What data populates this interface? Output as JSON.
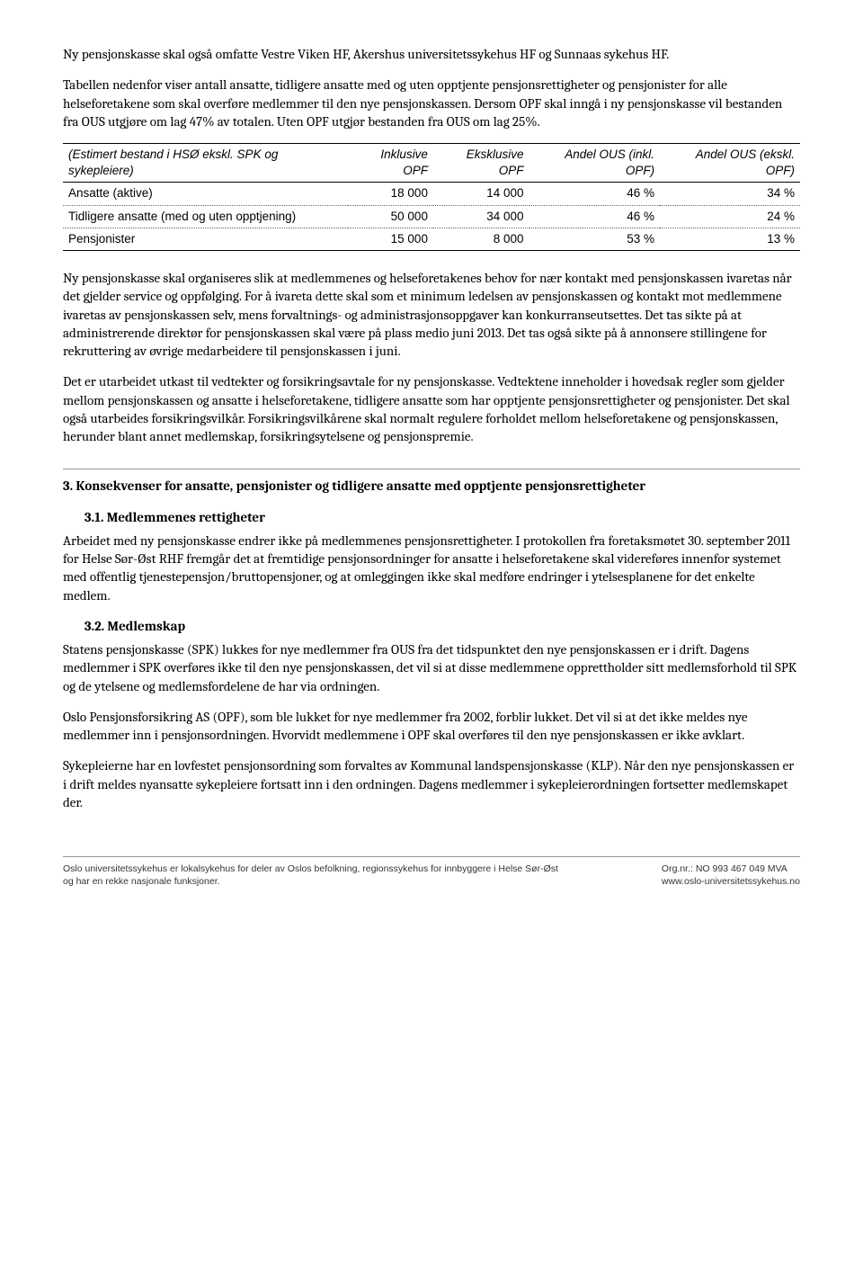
{
  "paragraphs_top": [
    "Ny pensjonskasse skal også omfatte Vestre Viken HF, Akershus universitetssykehus HF og Sunnaas sykehus HF.",
    "Tabellen nedenfor viser antall ansatte, tidligere ansatte med og uten opptjente pensjonsrettigheter og pensjonister for alle helseforetakene som skal overføre medlemmer til den nye pensjonskassen. Dersom OPF skal inngå i ny pensjonskasse vil bestanden fra OUS utgjøre om lag 47% av totalen. Uten OPF utgjør bestanden fra OUS om lag 25%."
  ],
  "table": {
    "headers": [
      "(Estimert bestand i HSØ ekskl. SPK og sykepleiere)",
      "Inklusive OPF",
      "Eksklusive OPF",
      "Andel OUS (inkl. OPF)",
      "Andel OUS (ekskl. OPF)"
    ],
    "rows": [
      [
        "Ansatte (aktive)",
        "18 000",
        "14 000",
        "46 %",
        "34 %"
      ],
      [
        "Tidligere ansatte (med og uten opptjening)",
        "50 000",
        "34 000",
        "46 %",
        "24 %"
      ],
      [
        "Pensjonister",
        "15 000",
        "8 000",
        "53 %",
        "13 %"
      ]
    ]
  },
  "paragraphs_mid": [
    "Ny pensjonskasse skal organiseres slik at medlemmenes og helseforetakenes behov for nær kontakt med pensjonskassen ivaretas når det gjelder service og oppfølging. For å ivareta dette skal som et minimum ledelsen av pensjonskassen og kontakt mot medlemmene ivaretas av pensjonskassen selv, mens forvaltnings- og administrasjonsoppgaver kan konkurranseutsettes. Det tas sikte på at administrerende direktør for pensjonskassen skal være på plass medio juni 2013. Det tas også sikte på å annonsere stillingene for rekruttering av øvrige medarbeidere til pensjonskassen i juni.",
    "Det er utarbeidet utkast til vedtekter og forsikringsavtale for ny pensjonskasse. Vedtektene inneholder i hovedsak regler som gjelder mellom pensjonskassen og ansatte i helseforetakene, tidligere ansatte som har opptjente pensjonsrettigheter og pensjonister. Det skal også utarbeides forsikringsvilkår. Forsikringsvilkårene skal normalt regulere forholdet mellom helseforetakene og pensjonskassen, herunder blant annet medlemskap, forsikringsytelsene og pensjonspremie."
  ],
  "section3": {
    "heading": "3.  Konsekvenser for ansatte, pensjonister og tidligere ansatte med opptjente pensjonsrettigheter",
    "sub1_heading": "3.1. Medlemmenes rettigheter",
    "sub1_para": "Arbeidet med ny pensjonskasse endrer ikke på medlemmenes pensjonsrettigheter. I protokollen fra foretaksmøtet 30. september 2011 for Helse Sør-Øst RHF fremgår det at fremtidige pensjonsordninger for ansatte i helseforetakene skal videreføres innenfor systemet med offentlig tjenestepensjon/bruttopensjoner, og at omleggingen ikke skal medføre endringer i ytelsesplanene for det enkelte medlem.",
    "sub2_heading": "3.2. Medlemskap",
    "sub2_paras": [
      "Statens pensjonskasse (SPK) lukkes for nye medlemmer fra OUS fra det tidspunktet den nye pensjonskassen er i drift. Dagens medlemmer i SPK overføres ikke til den nye pensjonskassen, det vil si at disse medlemmene opprettholder sitt medlemsforhold til SPK og de ytelsene og medlemsfordelene de har via ordningen.",
      "Oslo Pensjonsforsikring AS (OPF), som ble lukket for nye medlemmer fra 2002, forblir lukket. Det vil si at det ikke meldes nye medlemmer inn i pensjonsordningen. Hvorvidt medlemmene i OPF skal overføres til den nye pensjonskassen er ikke avklart.",
      "Sykepleierne har en lovfestet pensjonsordning som forvaltes av Kommunal landspensjonskasse (KLP). Når den nye pensjonskassen er i drift meldes nyansatte sykepleiere fortsatt inn i den ordningen. Dagens medlemmer i sykepleierordningen fortsetter medlemskapet der."
    ]
  },
  "footer": {
    "left": "Oslo universitetssykehus er lokalsykehus for deler av Oslos befolkning, regionssykehus for innbyggere i Helse Sør-Øst og har en rekke nasjonale funksjoner.",
    "right_line1": "Org.nr.: NO 993 467 049 MVA",
    "right_line2": "www.oslo-universitetssykehus.no"
  }
}
